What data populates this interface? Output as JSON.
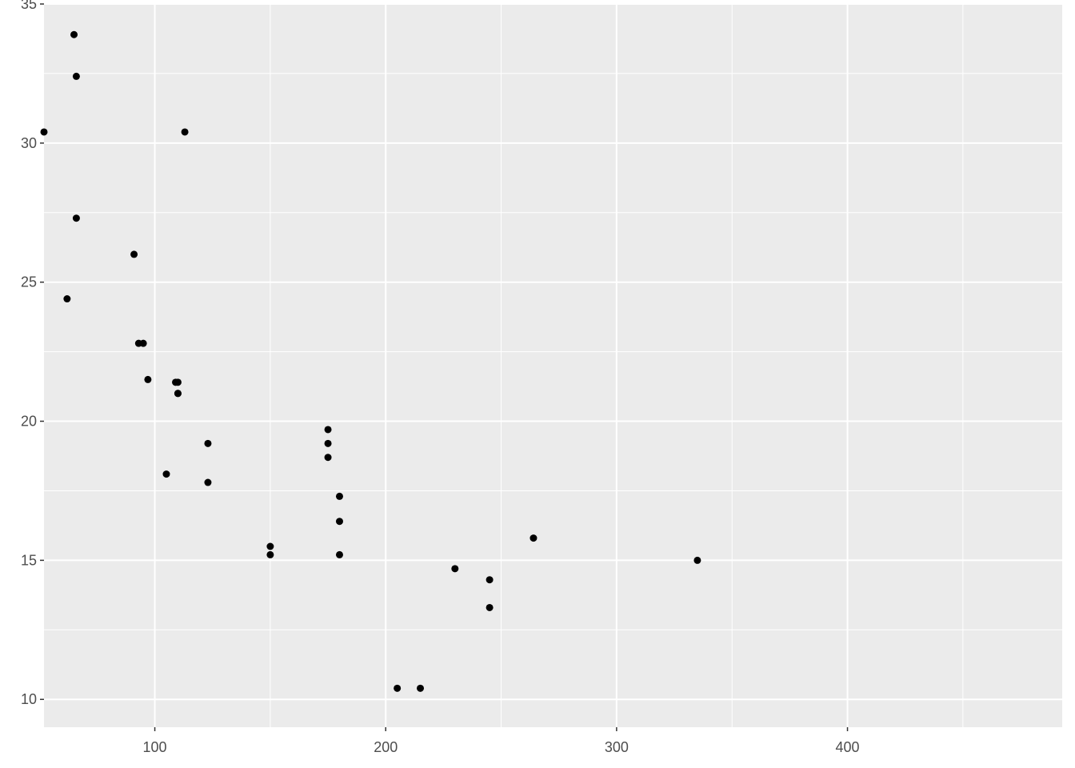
{
  "chart_data": {
    "type": "scatter",
    "title": "",
    "xlabel": "",
    "ylabel": "",
    "xlim": [
      52,
      493
    ],
    "ylim": [
      9.0,
      35.0
    ],
    "x_ticks": [
      100,
      200,
      300,
      400
    ],
    "x_minor_ticks": [
      150,
      250,
      350,
      450
    ],
    "y_ticks": [
      10,
      15,
      20,
      25,
      30,
      35
    ],
    "y_minor_ticks": [
      12.5,
      17.5,
      22.5,
      27.5,
      32.5
    ],
    "x_tick_labels": [
      "100",
      "200",
      "300",
      "400"
    ],
    "y_tick_labels": [
      "10",
      "15",
      "20",
      "25",
      "30",
      "35"
    ],
    "grid": true,
    "legend": "none",
    "colors": {
      "panel_background": "#ebebeb",
      "grid": "#ffffff",
      "point": "#000000",
      "tick_text": "#4d4d4d",
      "tick_mark": "#333333"
    },
    "series": [
      {
        "points": [
          {
            "x": 110,
            "y": 21.0
          },
          {
            "x": 110,
            "y": 21.0
          },
          {
            "x": 93,
            "y": 22.8
          },
          {
            "x": 110,
            "y": 21.4
          },
          {
            "x": 175,
            "y": 18.7
          },
          {
            "x": 105,
            "y": 18.1
          },
          {
            "x": 245,
            "y": 14.3
          },
          {
            "x": 62,
            "y": 24.4
          },
          {
            "x": 95,
            "y": 22.8
          },
          {
            "x": 123,
            "y": 19.2
          },
          {
            "x": 123,
            "y": 17.8
          },
          {
            "x": 180,
            "y": 16.4
          },
          {
            "x": 180,
            "y": 17.3
          },
          {
            "x": 180,
            "y": 15.2
          },
          {
            "x": 205,
            "y": 10.4
          },
          {
            "x": 215,
            "y": 10.4
          },
          {
            "x": 230,
            "y": 14.7
          },
          {
            "x": 66,
            "y": 32.4
          },
          {
            "x": 52,
            "y": 30.4
          },
          {
            "x": 65,
            "y": 33.9
          },
          {
            "x": 97,
            "y": 21.5
          },
          {
            "x": 150,
            "y": 15.5
          },
          {
            "x": 150,
            "y": 15.2
          },
          {
            "x": 245,
            "y": 13.3
          },
          {
            "x": 175,
            "y": 19.2
          },
          {
            "x": 66,
            "y": 27.3
          },
          {
            "x": 91,
            "y": 26.0
          },
          {
            "x": 113,
            "y": 30.4
          },
          {
            "x": 264,
            "y": 15.8
          },
          {
            "x": 175,
            "y": 19.7
          },
          {
            "x": 335,
            "y": 15.0
          },
          {
            "x": 109,
            "y": 21.4
          }
        ]
      }
    ]
  }
}
